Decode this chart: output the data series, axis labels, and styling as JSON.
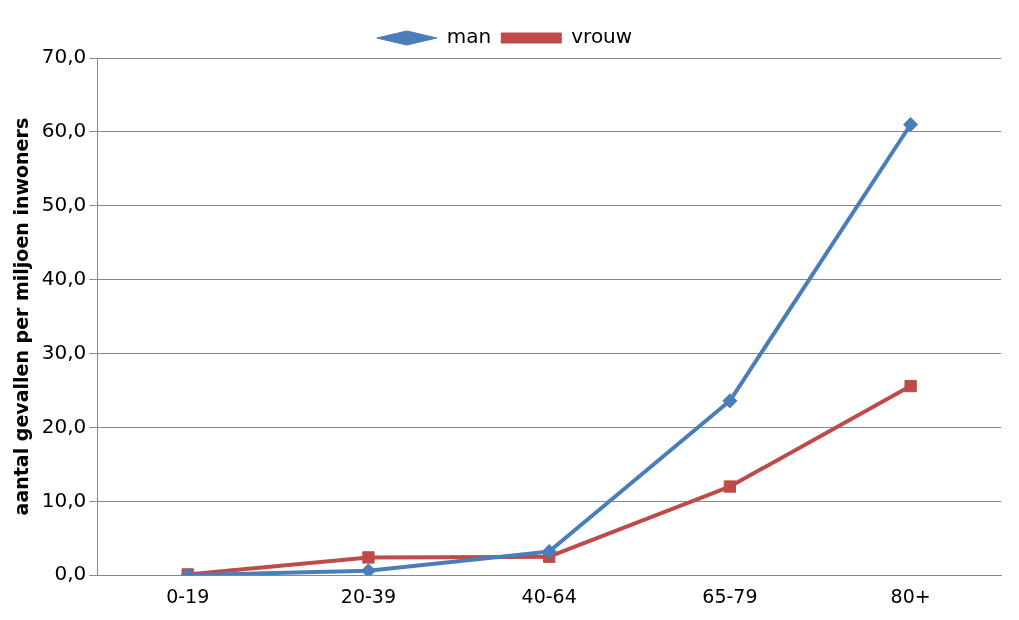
{
  "chart_data": {
    "type": "line",
    "ylabel": "aantal gevallen per miljoen inwoners",
    "categories": [
      "0-19",
      "20-39",
      "40-64",
      "65-79",
      "80+"
    ],
    "series": [
      {
        "name": "man",
        "color": "#4a7ebb",
        "marker": "diamond",
        "values": [
          0.0,
          0.6,
          3.2,
          23.6,
          61.0
        ]
      },
      {
        "name": "vrouw",
        "color": "#be4b48",
        "marker": "square",
        "values": [
          0.1,
          2.4,
          2.5,
          12.0,
          25.6
        ]
      }
    ],
    "ylim": [
      0,
      70
    ],
    "yticks": [
      {
        "value": 0,
        "label": "0,0"
      },
      {
        "value": 10,
        "label": "10,0"
      },
      {
        "value": 20,
        "label": "20,0"
      },
      {
        "value": 30,
        "label": "30,0"
      },
      {
        "value": 40,
        "label": "40,0"
      },
      {
        "value": 50,
        "label": "50,0"
      },
      {
        "value": 60,
        "label": "60,0"
      },
      {
        "value": 70,
        "label": "70,0"
      }
    ],
    "grid": "y",
    "legend": "top",
    "line_style": "solid"
  }
}
